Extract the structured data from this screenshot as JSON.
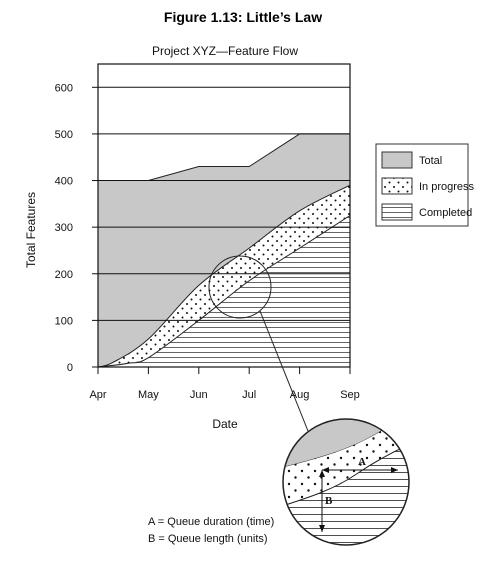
{
  "figure_title": "Figure 1.13: Little’s Law",
  "chart_data": {
    "type": "area",
    "title": "Project XYZ—Feature Flow",
    "xlabel": "Date",
    "ylabel": "Total Features",
    "categories": [
      "Apr",
      "May",
      "Jun",
      "Jul",
      "Aug",
      "Sep"
    ],
    "ylim": [
      0,
      650
    ],
    "yticks": [
      0,
      100,
      200,
      300,
      400,
      500,
      600
    ],
    "grid": "horizontal",
    "legend_position": "right",
    "series": [
      {
        "name": "Total",
        "fill": "solid-gray",
        "color": "#c8c8c8",
        "points": [
          [
            0,
            400
          ],
          [
            1,
            400
          ],
          [
            2,
            430
          ],
          [
            3,
            430
          ],
          [
            4,
            500
          ],
          [
            5,
            500
          ]
        ]
      },
      {
        "name": "In progress",
        "fill": "dots",
        "points": [
          [
            0,
            0
          ],
          [
            0.3,
            10
          ],
          [
            1,
            60
          ],
          [
            2,
            175
          ],
          [
            3,
            255
          ],
          [
            4,
            335
          ],
          [
            5,
            390
          ]
        ]
      },
      {
        "name": "Completed",
        "fill": "horizontal-lines",
        "points": [
          [
            0,
            0
          ],
          [
            0.6,
            8
          ],
          [
            1,
            20
          ],
          [
            2,
            100
          ],
          [
            3,
            185
          ],
          [
            4,
            255
          ],
          [
            5,
            325
          ]
        ]
      }
    ],
    "magnifier": {
      "center": [
        2.75,
        175
      ],
      "labels": [
        "A",
        "B"
      ]
    },
    "notes": [
      "A = Queue duration (time)",
      "B = Queue length (units)"
    ]
  }
}
